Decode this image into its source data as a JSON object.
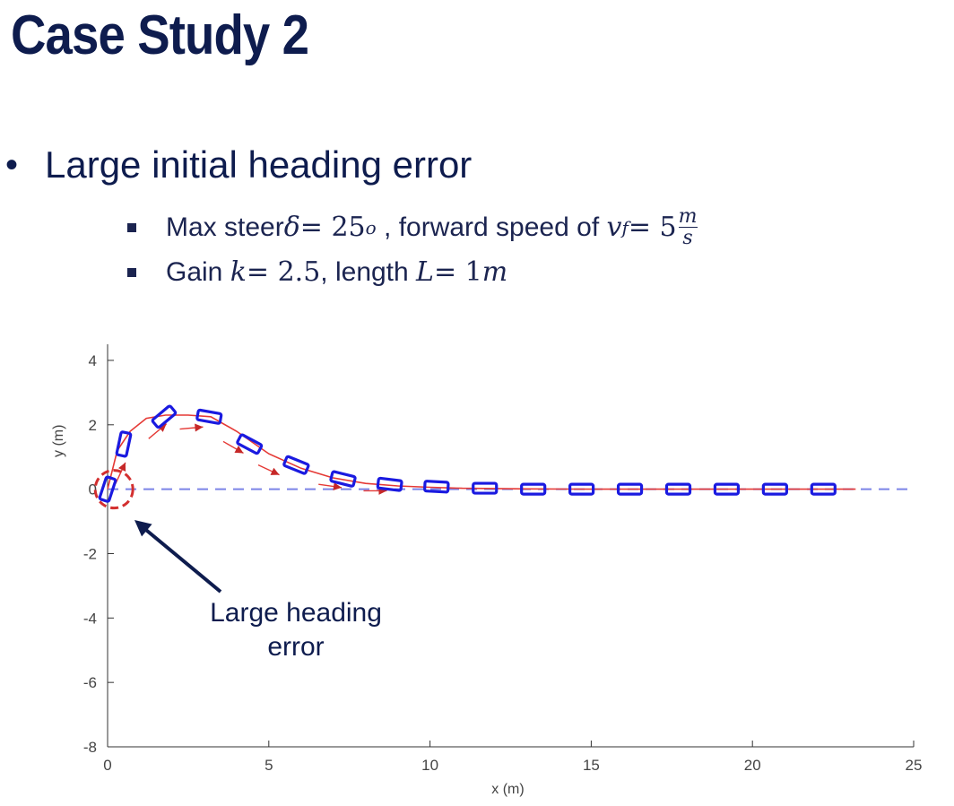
{
  "slide": {
    "title": "Case Study 2",
    "bullet": "Large initial heading error",
    "sub1": {
      "text1": "Max steer ",
      "delta": "δ",
      "eq1": " = 25",
      "sup1": "o",
      "text2": " , forward speed of ",
      "v": "v",
      "vsub": "f",
      "eq2": " = 5",
      "num": "m",
      "den": "s"
    },
    "sub2": {
      "text1": "Gain ",
      "k": "k",
      "eq1": " = 2.5",
      "text2": ", length ",
      "L": "L",
      "eq2": " = 1",
      "unit": "m"
    }
  },
  "chart_data": {
    "type": "line",
    "title": "",
    "xlabel": "x (m)",
    "ylabel": "y (m)",
    "xlim": [
      0,
      25
    ],
    "ylim": [
      -8,
      4.5
    ],
    "xticks": [
      0,
      5,
      10,
      15,
      20,
      25
    ],
    "yticks": [
      -8,
      -6,
      -4,
      -2,
      0,
      2,
      4
    ],
    "reference_path": {
      "y": 0,
      "style": "dashed",
      "color": "#7b83e6"
    },
    "trajectory": {
      "color": "#e53935",
      "x": [
        0,
        0.3,
        0.7,
        1.2,
        1.8,
        2.5,
        3.2,
        4.0,
        5.0,
        6.0,
        7.0,
        8.0,
        9.0,
        10.0,
        11.0,
        12.0,
        13.0,
        15.0,
        17.0,
        19.0,
        21.0,
        23.2
      ],
      "y": [
        0,
        1.2,
        1.8,
        2.2,
        2.3,
        2.3,
        2.25,
        1.8,
        1.1,
        0.65,
        0.35,
        0.18,
        0.1,
        0.06,
        0.03,
        0.02,
        0.01,
        0,
        0,
        0,
        0,
        0
      ]
    },
    "arrows": [
      {
        "x": 0.4,
        "y": 0.5,
        "angle": 65
      },
      {
        "x": 1.55,
        "y": 1.8,
        "angle": 40
      },
      {
        "x": 2.6,
        "y": 1.9,
        "angle": 5
      },
      {
        "x": 3.9,
        "y": 1.3,
        "angle": -30
      },
      {
        "x": 5.0,
        "y": 0.6,
        "angle": -25
      },
      {
        "x": 6.9,
        "y": 0.1,
        "angle": -8
      },
      {
        "x": 8.3,
        "y": -0.05,
        "angle": 0
      }
    ],
    "vehicles": [
      {
        "x": 0.0,
        "y": 0.0,
        "angle": 72
      },
      {
        "x": 0.5,
        "y": 1.4,
        "angle": 78
      },
      {
        "x": 1.75,
        "y": 2.25,
        "angle": 40
      },
      {
        "x": 3.15,
        "y": 2.25,
        "angle": -10
      },
      {
        "x": 4.4,
        "y": 1.4,
        "angle": -28
      },
      {
        "x": 5.85,
        "y": 0.75,
        "angle": -22
      },
      {
        "x": 7.3,
        "y": 0.32,
        "angle": -14
      },
      {
        "x": 8.75,
        "y": 0.15,
        "angle": -7
      },
      {
        "x": 10.2,
        "y": 0.08,
        "angle": -3
      },
      {
        "x": 11.7,
        "y": 0.03,
        "angle": 0
      },
      {
        "x": 13.2,
        "y": 0.0,
        "angle": 0
      },
      {
        "x": 14.7,
        "y": 0.0,
        "angle": 0
      },
      {
        "x": 16.2,
        "y": 0.0,
        "angle": 0
      },
      {
        "x": 17.7,
        "y": 0.0,
        "angle": 0
      },
      {
        "x": 19.2,
        "y": 0.0,
        "angle": 0
      },
      {
        "x": 20.7,
        "y": 0.0,
        "angle": 0
      },
      {
        "x": 22.2,
        "y": 0.0,
        "angle": 0
      }
    ],
    "vehicle_color": "#1a1ae0",
    "annotation": {
      "text_line1": "Large heading",
      "text_line2": "error",
      "circle_x": 0.2,
      "circle_y": 0.0,
      "circle_color": "#d32f2f",
      "arrow_color": "#0e1c4e"
    }
  }
}
